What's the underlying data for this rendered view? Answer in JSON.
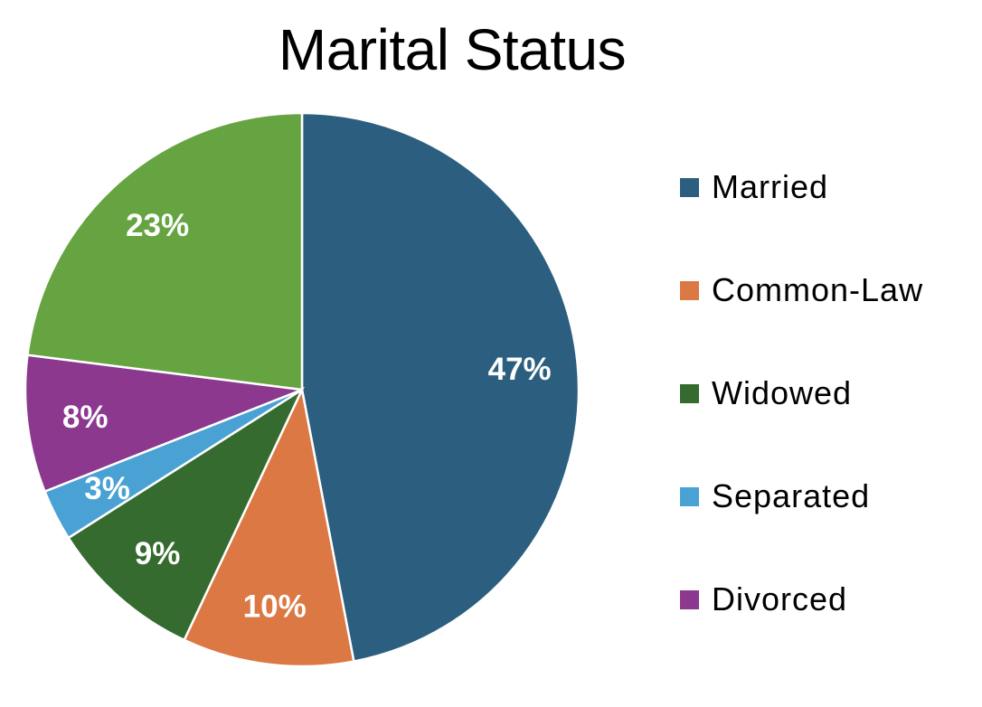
{
  "chart_data": {
    "type": "pie",
    "title": "Marital Status",
    "slices": [
      {
        "label": "Married",
        "value": 47,
        "display": "47%",
        "color": "#2C5F7F"
      },
      {
        "label": "Common-Law",
        "value": 10,
        "display": "10%",
        "color": "#DC7843"
      },
      {
        "label": "Widowed",
        "value": 9,
        "display": "9%",
        "color": "#356B2E"
      },
      {
        "label": "Separated",
        "value": 3,
        "display": "3%",
        "color": "#4AA2D4"
      },
      {
        "label": "Divorced",
        "value": 8,
        "display": "8%",
        "color": "#8B388E"
      },
      {
        "label": "",
        "value": 23,
        "display": "23%",
        "color": "#66A441"
      }
    ],
    "legend": {
      "position": "right",
      "entries": [
        "Married",
        "Common-Law",
        "Widowed",
        "Separated",
        "Divorced"
      ]
    }
  }
}
